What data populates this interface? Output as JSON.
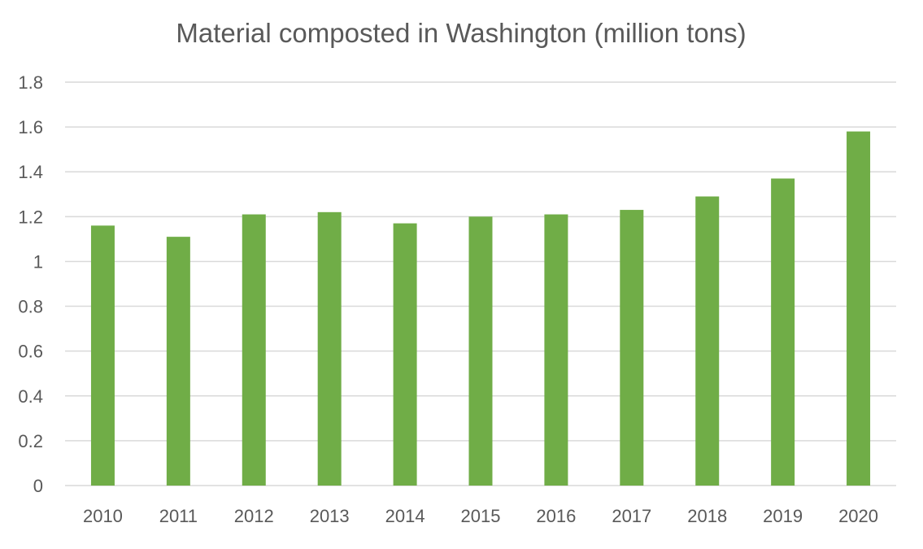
{
  "chart_data": {
    "type": "bar",
    "title": "Material composted in Washington (million tons)",
    "xlabel": "",
    "ylabel": "",
    "categories": [
      "2010",
      "2011",
      "2012",
      "2013",
      "2014",
      "2015",
      "2016",
      "2017",
      "2018",
      "2019",
      "2020"
    ],
    "values": [
      1.16,
      1.11,
      1.21,
      1.22,
      1.17,
      1.2,
      1.21,
      1.23,
      1.29,
      1.37,
      1.58
    ],
    "ylim": [
      0,
      1.8
    ],
    "yticks": [
      "0",
      "0.2",
      "0.4",
      "0.6",
      "0.8",
      "1",
      "1.2",
      "1.4",
      "1.6",
      "1.8"
    ],
    "grid": true,
    "legend": "none",
    "bar_color": "#70ad47"
  }
}
